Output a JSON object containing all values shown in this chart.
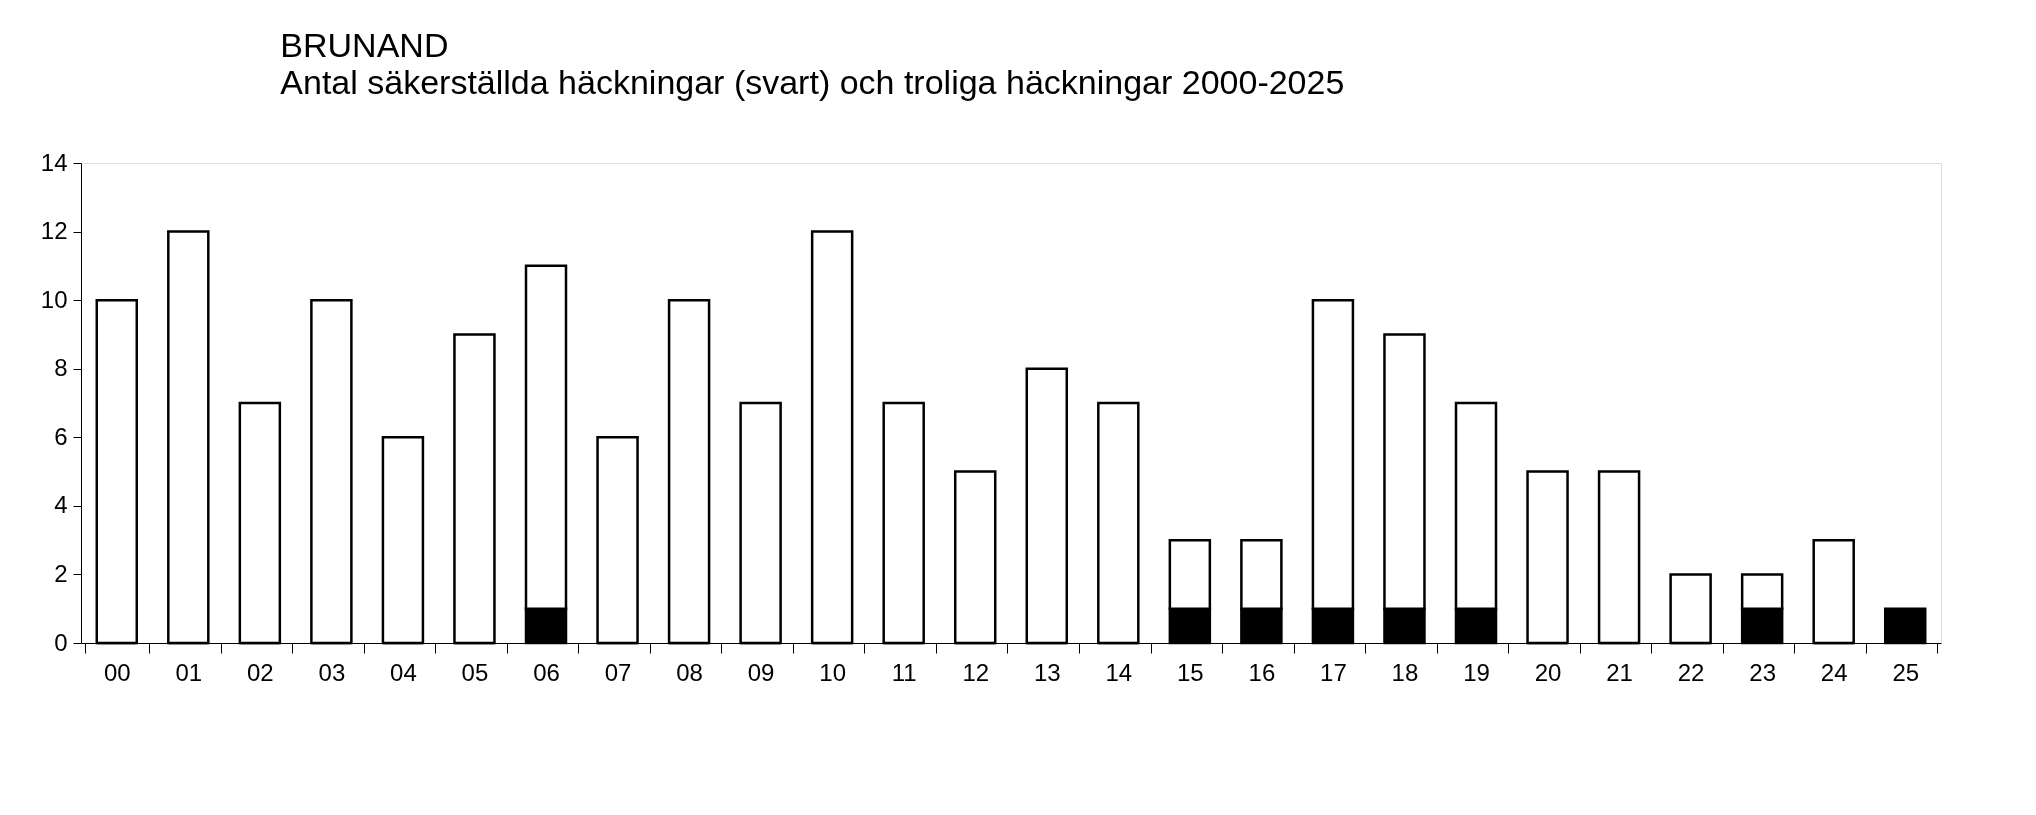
{
  "chart_data": {
    "type": "bar",
    "title": "BRUNAND",
    "subtitle": "Antal säkerställda häckningar (svart) och troliga häckningar 2000-2025",
    "categories": [
      "00",
      "01",
      "02",
      "03",
      "04",
      "05",
      "06",
      "07",
      "08",
      "09",
      "10",
      "11",
      "12",
      "13",
      "14",
      "15",
      "16",
      "17",
      "18",
      "19",
      "20",
      "21",
      "22",
      "23",
      "24",
      "25"
    ],
    "stacked": true,
    "series": [
      {
        "color": "#000000",
        "values": [
          0,
          0,
          0,
          0,
          0,
          0,
          1,
          0,
          0,
          0,
          0,
          0,
          0,
          0,
          0,
          1,
          1,
          1,
          1,
          1,
          0,
          0,
          0,
          1,
          0,
          1
        ]
      },
      {
        "color": "#ffffff",
        "values": [
          10,
          12,
          7,
          10,
          6,
          9,
          10,
          6,
          10,
          7,
          12,
          7,
          5,
          8,
          7,
          2,
          2,
          9,
          8,
          6,
          5,
          5,
          2,
          1,
          3,
          null
        ]
      }
    ],
    "ylim": [
      0,
      14
    ],
    "yticks": [
      0,
      2,
      4,
      6,
      8,
      10,
      12,
      14
    ],
    "grid": false,
    "legend": false
  }
}
